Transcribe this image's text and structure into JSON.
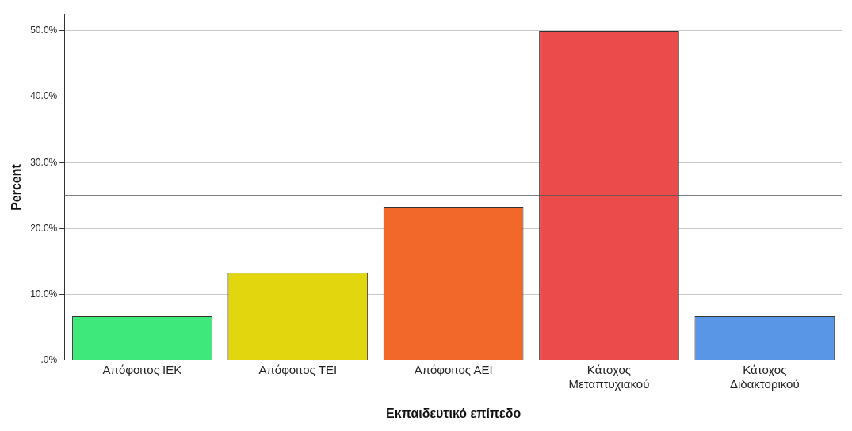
{
  "chart_data": {
    "type": "bar",
    "xlabel": "Εκπαιδευτικό επίπεδο",
    "ylabel": "Percent",
    "categories": [
      "Απόφοιτος ΙΕΚ",
      "Απόφοιτος ΤΕΙ",
      "Απόφοιτος ΑΕΙ",
      "Κάτοχος Μεταπτυχιακού",
      "Κάτοχος Διδακτορικού"
    ],
    "values": [
      6.7,
      13.3,
      23.3,
      50,
      6.7
    ],
    "colors": [
      "#3fe87a",
      "#e2d60f",
      "#f2672a",
      "#ec4b4b",
      "#5a96e6"
    ],
    "ylim": [
      0,
      52.5
    ],
    "yticks": [
      {
        "value": 0,
        "label": ".0%"
      },
      {
        "value": 10,
        "label": "10.0%"
      },
      {
        "value": 20,
        "label": "20.0%"
      },
      {
        "value": 30,
        "label": "30.0%"
      },
      {
        "value": 40,
        "label": "40.0%"
      },
      {
        "value": 50,
        "label": "50.0%"
      }
    ],
    "grid": "y",
    "legend": false,
    "ref_lines": [
      {
        "axis": "y",
        "value": 25,
        "color": "#555555"
      }
    ]
  }
}
